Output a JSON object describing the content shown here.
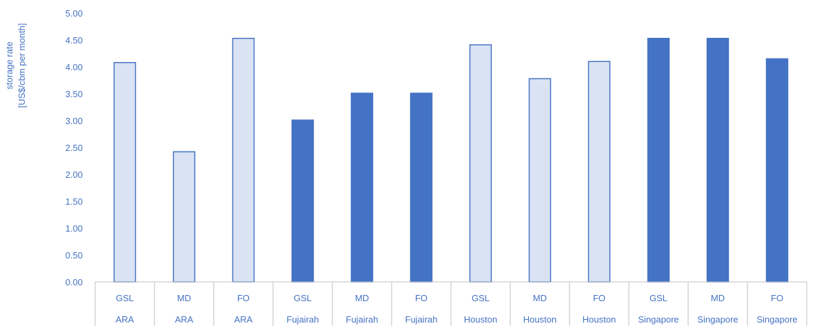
{
  "chart_data": {
    "type": "bar",
    "title": "",
    "ylabel_lines": [
      "storage rate",
      "[US$/cbm per month]"
    ],
    "ylim": [
      0,
      5
    ],
    "yticks": [
      "0.00",
      "0.50",
      "1.00",
      "1.50",
      "2.00",
      "2.50",
      "3.00",
      "3.50",
      "4.00",
      "4.50",
      "5.00"
    ],
    "grid": false,
    "legend": "none",
    "categories": [
      {
        "product": "GSL",
        "location": "ARA"
      },
      {
        "product": "MD",
        "location": "ARA"
      },
      {
        "product": "FO",
        "location": "ARA"
      },
      {
        "product": "GSL",
        "location": "Fujairah"
      },
      {
        "product": "MD",
        "location": "Fujairah"
      },
      {
        "product": "FO",
        "location": "Fujairah"
      },
      {
        "product": "GSL",
        "location": "Houston"
      },
      {
        "product": "MD",
        "location": "Houston"
      },
      {
        "product": "FO",
        "location": "Houston"
      },
      {
        "product": "GSL",
        "location": "Singapore"
      },
      {
        "product": "MD",
        "location": "Singapore"
      },
      {
        "product": "FO",
        "location": "Singapore"
      }
    ],
    "values": [
      4.08,
      2.42,
      4.53,
      3.01,
      3.51,
      3.51,
      4.41,
      3.78,
      4.1,
      4.53,
      4.53,
      4.15
    ],
    "bar_fill": [
      "light",
      "light",
      "light",
      "dark",
      "dark",
      "dark",
      "light",
      "light",
      "light",
      "dark",
      "dark",
      "dark"
    ],
    "colors": {
      "dark_fill": "#4472C4",
      "light_fill": "#DAE3F3",
      "bar_outline": "#4472C4",
      "text": "#4472C4",
      "axis": "#BFBFBF"
    }
  }
}
